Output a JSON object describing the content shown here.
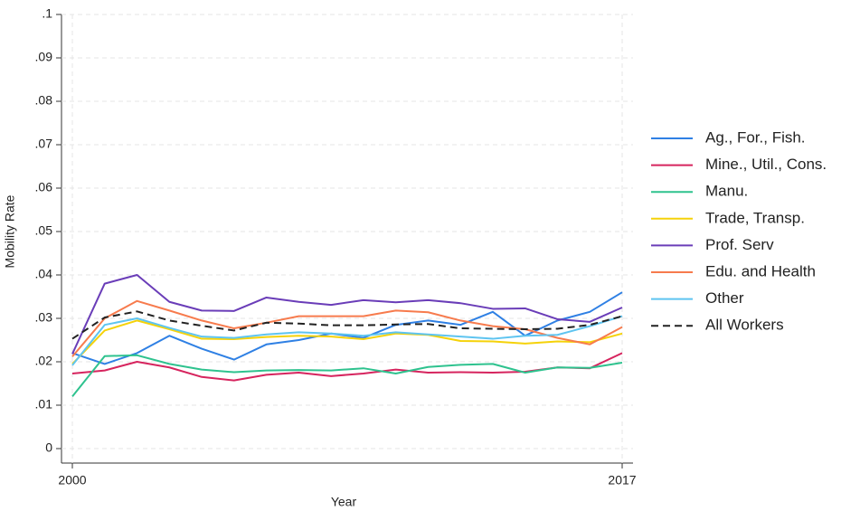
{
  "chart_data": {
    "type": "line",
    "x_label": "Year",
    "y_label": "Mobility Rate",
    "x": [
      2000,
      2001,
      2002,
      2003,
      2004,
      2005,
      2006,
      2007,
      2008,
      2009,
      2010,
      2011,
      2012,
      2013,
      2014,
      2015,
      2016,
      2017
    ],
    "xlim": [
      2000,
      2017
    ],
    "xticks": [
      2000,
      2017
    ],
    "ylim": [
      0,
      0.1
    ],
    "yticks": [
      0,
      {
        "value": 0.01,
        "label": ".01"
      },
      {
        "value": 0.02,
        "label": ".02"
      },
      {
        "value": 0.03,
        "label": ".03"
      },
      {
        "value": 0.04,
        "label": ".04"
      },
      {
        "value": 0.05,
        "label": ".05"
      },
      {
        "value": 0.06,
        "label": ".06"
      },
      {
        "value": 0.07,
        "label": ".07"
      },
      {
        "value": 0.08,
        "label": ".08"
      },
      {
        "value": 0.09,
        "label": ".09"
      },
      {
        "value": 0.1,
        "label": ".1"
      }
    ],
    "grid": true,
    "legend": "right",
    "series": [
      {
        "name": "Ag., For., Fish.",
        "color": "#2f80e4",
        "values": [
          0.022,
          0.0195,
          0.022,
          0.026,
          0.023,
          0.0205,
          0.024,
          0.025,
          0.0265,
          0.0255,
          0.0285,
          0.0295,
          0.0285,
          0.0315,
          0.026,
          0.0295,
          0.0315,
          0.036
        ]
      },
      {
        "name": "Mine., Util., Cons.",
        "color": "#d6245e",
        "values": [
          0.0173,
          0.018,
          0.02,
          0.0187,
          0.0165,
          0.0157,
          0.017,
          0.0175,
          0.0167,
          0.0173,
          0.0182,
          0.0175,
          0.0176,
          0.0175,
          0.0177,
          0.0187,
          0.0185,
          0.022
        ]
      },
      {
        "name": "Manu.",
        "color": "#2ec28e",
        "values": [
          0.012,
          0.0213,
          0.0215,
          0.0195,
          0.0182,
          0.0176,
          0.018,
          0.0181,
          0.018,
          0.0185,
          0.0173,
          0.0188,
          0.0193,
          0.0195,
          0.0175,
          0.0187,
          0.0186,
          0.0198
        ]
      },
      {
        "name": "Trade, Transp.",
        "color": "#f5d20a",
        "values": [
          0.0195,
          0.0272,
          0.0295,
          0.0275,
          0.0253,
          0.0252,
          0.0257,
          0.026,
          0.0258,
          0.0252,
          0.0265,
          0.0262,
          0.0248,
          0.0247,
          0.0242,
          0.0247,
          0.0245,
          0.0265
        ]
      },
      {
        "name": "Prof. Serv",
        "color": "#6a3db8",
        "values": [
          0.0218,
          0.038,
          0.04,
          0.0338,
          0.0318,
          0.0317,
          0.0348,
          0.0338,
          0.0331,
          0.0342,
          0.0337,
          0.0342,
          0.0335,
          0.0322,
          0.0323,
          0.0298,
          0.0292,
          0.0325
        ]
      },
      {
        "name": "Edu. and Health",
        "color": "#f77b4d",
        "values": [
          0.0212,
          0.03,
          0.034,
          0.0318,
          0.0295,
          0.0277,
          0.029,
          0.0305,
          0.0305,
          0.0305,
          0.0318,
          0.0314,
          0.0295,
          0.0282,
          0.0275,
          0.0255,
          0.024,
          0.028
        ]
      },
      {
        "name": "Other",
        "color": "#5ec4f0",
        "values": [
          0.0192,
          0.0285,
          0.03,
          0.0278,
          0.0258,
          0.0255,
          0.0263,
          0.0268,
          0.0265,
          0.026,
          0.0268,
          0.0263,
          0.0258,
          0.0253,
          0.026,
          0.0262,
          0.0282,
          0.0305
        ]
      },
      {
        "name": "All Workers",
        "color": "#222222",
        "line_style": "dashed",
        "values": [
          0.0253,
          0.0302,
          0.0316,
          0.0295,
          0.0283,
          0.0272,
          0.029,
          0.0288,
          0.0284,
          0.0284,
          0.0286,
          0.0287,
          0.0277,
          0.0276,
          0.0275,
          0.0276,
          0.0285,
          0.0305
        ]
      }
    ]
  }
}
